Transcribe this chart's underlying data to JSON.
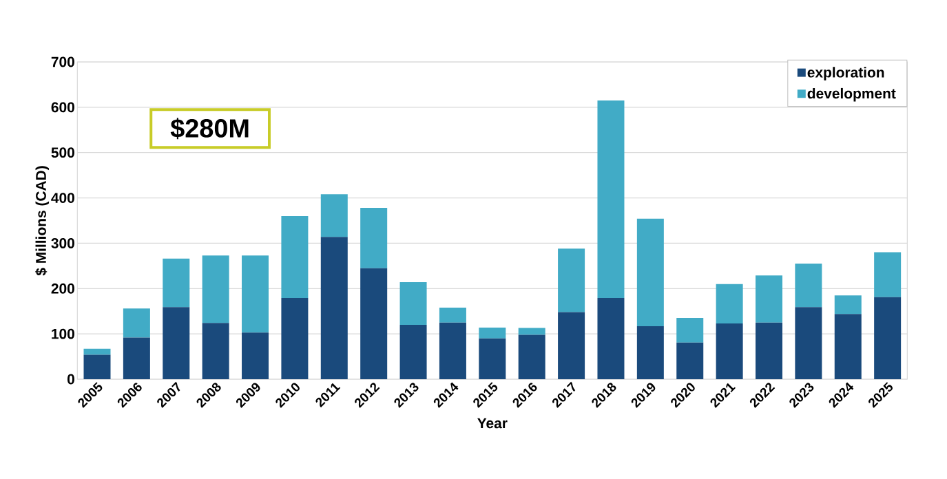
{
  "chart_data": {
    "type": "bar",
    "stacked": true,
    "xlabel": "Year",
    "ylabel": "$ Millions (CAD)",
    "categories": [
      "2005",
      "2006",
      "2007",
      "2008",
      "2009",
      "2010",
      "2011",
      "2012",
      "2013",
      "2014",
      "2015",
      "2016",
      "2017",
      "2018",
      "2019",
      "2020",
      "2021",
      "2022",
      "2023",
      "2024",
      "2025"
    ],
    "series": [
      {
        "name": "exploration",
        "color": "#1a4a7c",
        "values": [
          54,
          92,
          159,
          124,
          103,
          179,
          314,
          245,
          120,
          125,
          90,
          98,
          148,
          179,
          117,
          81,
          123,
          125,
          159,
          144,
          181
        ]
      },
      {
        "name": "development",
        "color": "#41abc6",
        "values": [
          13,
          64,
          107,
          149,
          170,
          181,
          94,
          133,
          94,
          33,
          24,
          15,
          140,
          436,
          237,
          54,
          87,
          104,
          96,
          41,
          99
        ]
      }
    ],
    "ylim": [
      0,
      700
    ],
    "yticks": [
      0,
      100,
      200,
      300,
      400,
      500,
      600,
      700
    ],
    "grid": "y",
    "legend": "top right",
    "annotations": [
      "$280M"
    ]
  }
}
